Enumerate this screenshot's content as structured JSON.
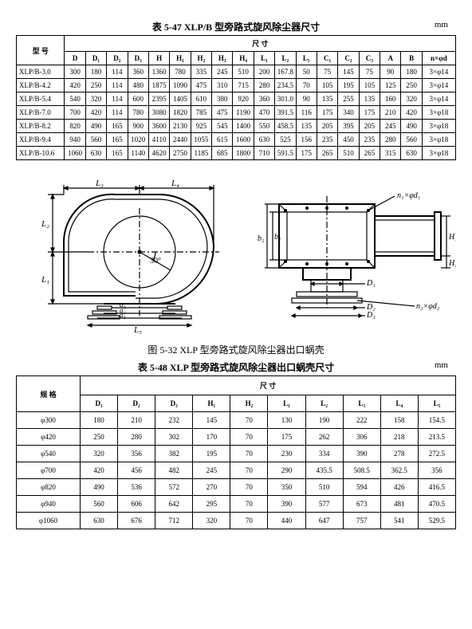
{
  "table1": {
    "title": "表 5-47  XLP/B 型旁路式旋风除尘器尺寸",
    "unit": "mm",
    "model_label": "型  号",
    "dim_label": "尺    寸",
    "columns": [
      "D",
      "D₁",
      "D₂",
      "D₃",
      "H",
      "H₁",
      "H₂",
      "H₃",
      "H₄",
      "L₁",
      "L₂",
      "L₅",
      "C₁",
      "C₂",
      "C₃",
      "A",
      "B",
      "n×φd"
    ],
    "rows": [
      {
        "m": "XLP/B-3.0",
        "v": [
          "300",
          "180",
          "114",
          "360",
          "1360",
          "780",
          "335",
          "245",
          "510",
          "200",
          "167.8",
          "50",
          "75",
          "145",
          "75",
          "90",
          "180",
          "3×φ14"
        ]
      },
      {
        "m": "XLP/B-4.2",
        "v": [
          "420",
          "250",
          "114",
          "480",
          "1875",
          "1090",
          "475",
          "310",
          "715",
          "280",
          "234.5",
          "70",
          "105",
          "195",
          "105",
          "125",
          "250",
          "3×φ14"
        ]
      },
      {
        "m": "XLP/B-5.4",
        "v": [
          "540",
          "320",
          "114",
          "600",
          "2395",
          "1405",
          "610",
          "380",
          "920",
          "360",
          "301.0",
          "90",
          "135",
          "255",
          "135",
          "160",
          "320",
          "3×φ14"
        ]
      },
      {
        "m": "XLP/B-7.0",
        "v": [
          "700",
          "420",
          "114",
          "780",
          "3080",
          "1820",
          "785",
          "475",
          "1190",
          "470",
          "391.5",
          "116",
          "175",
          "340",
          "175",
          "210",
          "420",
          "3×φ18"
        ]
      },
      {
        "m": "XLP/B-8.2",
        "v": [
          "820",
          "490",
          "165",
          "900",
          "3600",
          "2130",
          "925",
          "545",
          "1400",
          "550",
          "458.5",
          "135",
          "205",
          "395",
          "205",
          "245",
          "490",
          "3×φ18"
        ]
      },
      {
        "m": "XLP/B-9.4",
        "v": [
          "940",
          "560",
          "165",
          "1020",
          "4110",
          "2440",
          "1055",
          "615",
          "1600",
          "630",
          "525",
          "156",
          "235",
          "450",
          "235",
          "280",
          "560",
          "3×φ18"
        ]
      },
      {
        "m": "XLP/B-10.6",
        "v": [
          "1060",
          "630",
          "165",
          "1140",
          "4620",
          "2750",
          "1185",
          "685",
          "1800",
          "710",
          "591.5",
          "175",
          "265",
          "510",
          "265",
          "315",
          "630",
          "3×φ18"
        ]
      }
    ]
  },
  "figure": {
    "caption": "图 5-32  XLP 型旁路式旋风除尘器出口蜗壳",
    "labels": {
      "L3": "L₃",
      "L4": "L₄",
      "L2": "L₂",
      "L1": "L₁",
      "a1": "a₁",
      "a2": "a₂",
      "a3": "a₃",
      "L5": "L₅",
      "D1": "D₁",
      "D2": "D₂",
      "D3": "D₃",
      "H1": "H₁",
      "H2": "H₂",
      "angle": "30°",
      "n1": "n₁×φd₁",
      "n2": "n₂×φd₂",
      "b1": "b₁",
      "b2": "b₂"
    }
  },
  "table2": {
    "title": "表 5-48  XLP 型旁路式旋风除尘器出口蜗壳尺寸",
    "unit": "mm",
    "spec_label": "规    格",
    "dim_label": "尺    寸",
    "columns": [
      "D₁",
      "D₂",
      "D₃",
      "H₁",
      "H₂",
      "L₁",
      "L₂",
      "L₃",
      "L₄",
      "L₅"
    ],
    "rows": [
      {
        "m": "φ300",
        "v": [
          "180",
          "210",
          "232",
          "145",
          "70",
          "130",
          "190",
          "222",
          "158",
          "154.5"
        ]
      },
      {
        "m": "φ420",
        "v": [
          "250",
          "280",
          "302",
          "170",
          "70",
          "175",
          "262",
          "306",
          "218",
          "213.5"
        ]
      },
      {
        "m": "φ540",
        "v": [
          "320",
          "356",
          "382",
          "195",
          "70",
          "230",
          "334",
          "390",
          "278",
          "272.5"
        ]
      },
      {
        "m": "φ700",
        "v": [
          "420",
          "456",
          "482",
          "245",
          "70",
          "290",
          "435.5",
          "508.5",
          "362.5",
          "356"
        ]
      },
      {
        "m": "φ820",
        "v": [
          "490",
          "536",
          "572",
          "270",
          "70",
          "350",
          "510",
          "594",
          "426",
          "416.5"
        ]
      },
      {
        "m": "φ940",
        "v": [
          "560",
          "606",
          "642",
          "295",
          "70",
          "390",
          "577",
          "673",
          "481",
          "470.5"
        ]
      },
      {
        "m": "φ1060",
        "v": [
          "630",
          "676",
          "712",
          "320",
          "70",
          "440",
          "647",
          "757",
          "541",
          "529.5"
        ]
      }
    ]
  }
}
